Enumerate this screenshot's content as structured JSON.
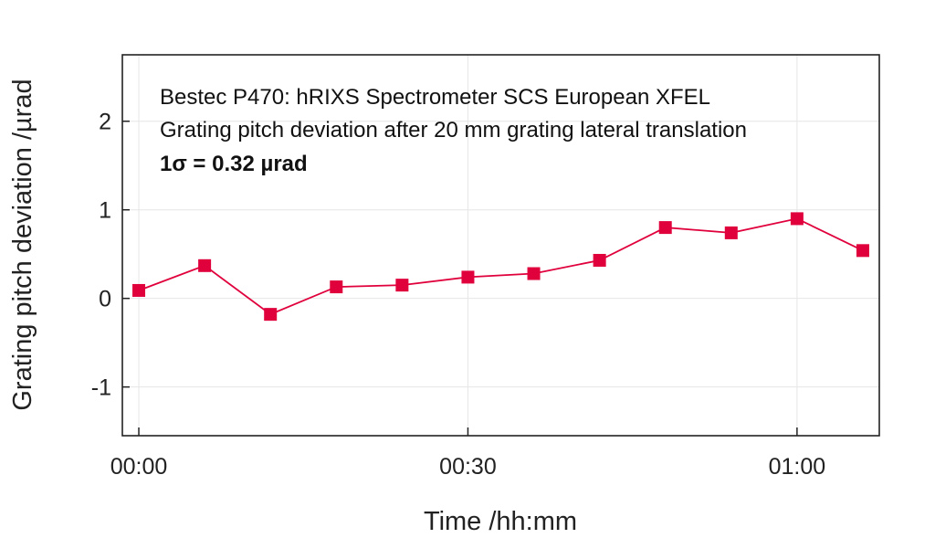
{
  "chart_data": {
    "type": "line",
    "xlabel": "Time /hh:mm",
    "ylabel": "Grating pitch deviation /µrad",
    "x_unit": "minutes",
    "x_ticks": [
      {
        "value": 0,
        "label": "00:00"
      },
      {
        "value": 30,
        "label": "00:30"
      },
      {
        "value": 60,
        "label": "01:00"
      }
    ],
    "y_ticks": [
      -1,
      0,
      1,
      2
    ],
    "xlim": [
      -1.5,
      67.5
    ],
    "ylim": [
      -1.55,
      2.75
    ],
    "grid": true,
    "annotations": [
      "Bestec P470: hRIXS Spectrometer SCS European XFEL",
      "Grating pitch deviation after 20 mm grating lateral translation",
      "1σ = 0.32 µrad"
    ],
    "series": [
      {
        "color": "#e0003c",
        "marker": "square",
        "x": [
          0,
          6,
          12,
          18,
          24,
          30,
          36,
          42,
          48,
          54,
          60,
          66
        ],
        "y": [
          0.09,
          0.37,
          -0.18,
          0.13,
          0.15,
          0.24,
          0.28,
          0.43,
          0.8,
          0.74,
          0.9,
          0.54
        ]
      }
    ]
  }
}
